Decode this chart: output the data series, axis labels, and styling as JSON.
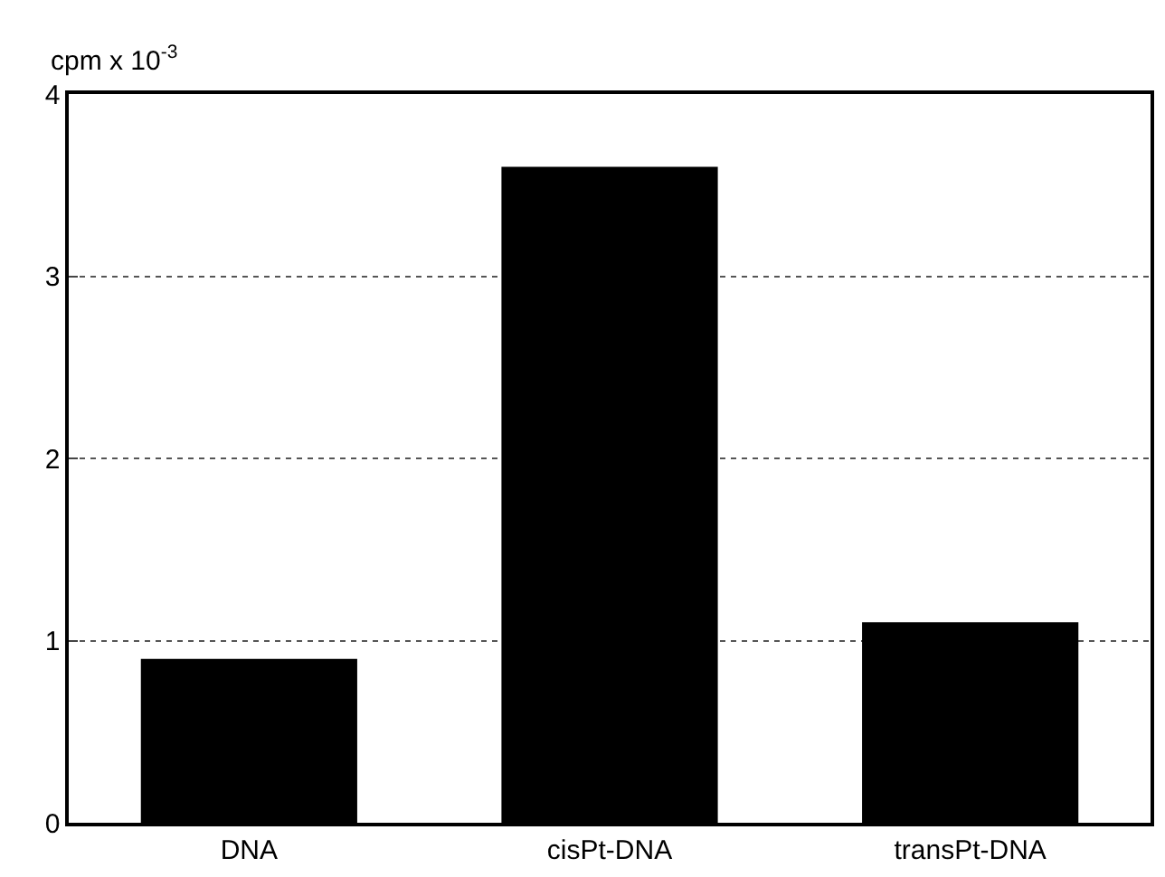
{
  "chart_data": {
    "type": "bar",
    "ylabel": "cpm x 10$^{-3}$",
    "categories": [
      "DNA",
      "cisPt-DNA",
      "transPt-DNA"
    ],
    "values": [
      0.9,
      3.6,
      1.1
    ],
    "color": "#000000",
    "ylim": [
      0,
      4
    ],
    "yticks": [
      0,
      1,
      2,
      3,
      4
    ],
    "grid": "y"
  }
}
